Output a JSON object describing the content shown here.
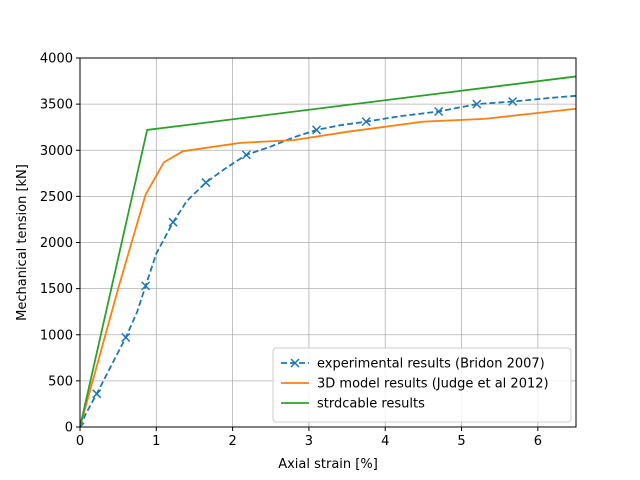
{
  "chart_data": {
    "type": "line",
    "xlabel": "Axial strain [%]",
    "ylabel": "Mechanical tension [kN]",
    "xlim": [
      0,
      6.5
    ],
    "ylim": [
      0,
      4000
    ],
    "x_ticks": [
      "0",
      "1",
      "2",
      "3",
      "4",
      "5",
      "6"
    ],
    "y_ticks": [
      "0",
      "500",
      "1000",
      "1500",
      "2000",
      "2500",
      "3000",
      "3500",
      "4000"
    ],
    "grid": true,
    "legend_position": "bottom-right",
    "series": [
      {
        "name": "experimental results (Bridon 2007)",
        "color": "#1f77b4",
        "line_style": "dashed",
        "marker": "x",
        "x": [
          0,
          0.08,
          0.22,
          0.4,
          0.6,
          0.75,
          0.86,
          1.0,
          1.22,
          1.4,
          1.65,
          1.9,
          2.18,
          2.5,
          2.8,
          3.1,
          3.4,
          3.75,
          4.2,
          4.7,
          5.2,
          5.7,
          6.2,
          6.5
        ],
        "y": [
          0,
          150,
          360,
          650,
          970,
          1250,
          1530,
          1880,
          2220,
          2450,
          2650,
          2800,
          2950,
          3040,
          3140,
          3220,
          3270,
          3310,
          3370,
          3420,
          3500,
          3530,
          3570,
          3590
        ],
        "marker_x": [
          0,
          0.22,
          0.6,
          0.86,
          1.22,
          1.65,
          2.18,
          3.1,
          3.75,
          4.7,
          5.2,
          5.67
        ]
      },
      {
        "name": "3D model results (Judge et al 2012)",
        "color": "#ff7f0e",
        "line_style": "solid",
        "x": [
          0,
          0.5,
          0.86,
          1.1,
          1.35,
          2.1,
          2.8,
          3.5,
          4.5,
          5.3,
          6.5
        ],
        "y": [
          0,
          1500,
          2520,
          2870,
          2990,
          3080,
          3110,
          3200,
          3310,
          3340,
          3450
        ]
      },
      {
        "name": "strdcable results",
        "color": "#2ca02c",
        "line_style": "solid",
        "x": [
          0,
          0.88,
          6.5
        ],
        "y": [
          0,
          3220,
          3800
        ]
      }
    ]
  }
}
